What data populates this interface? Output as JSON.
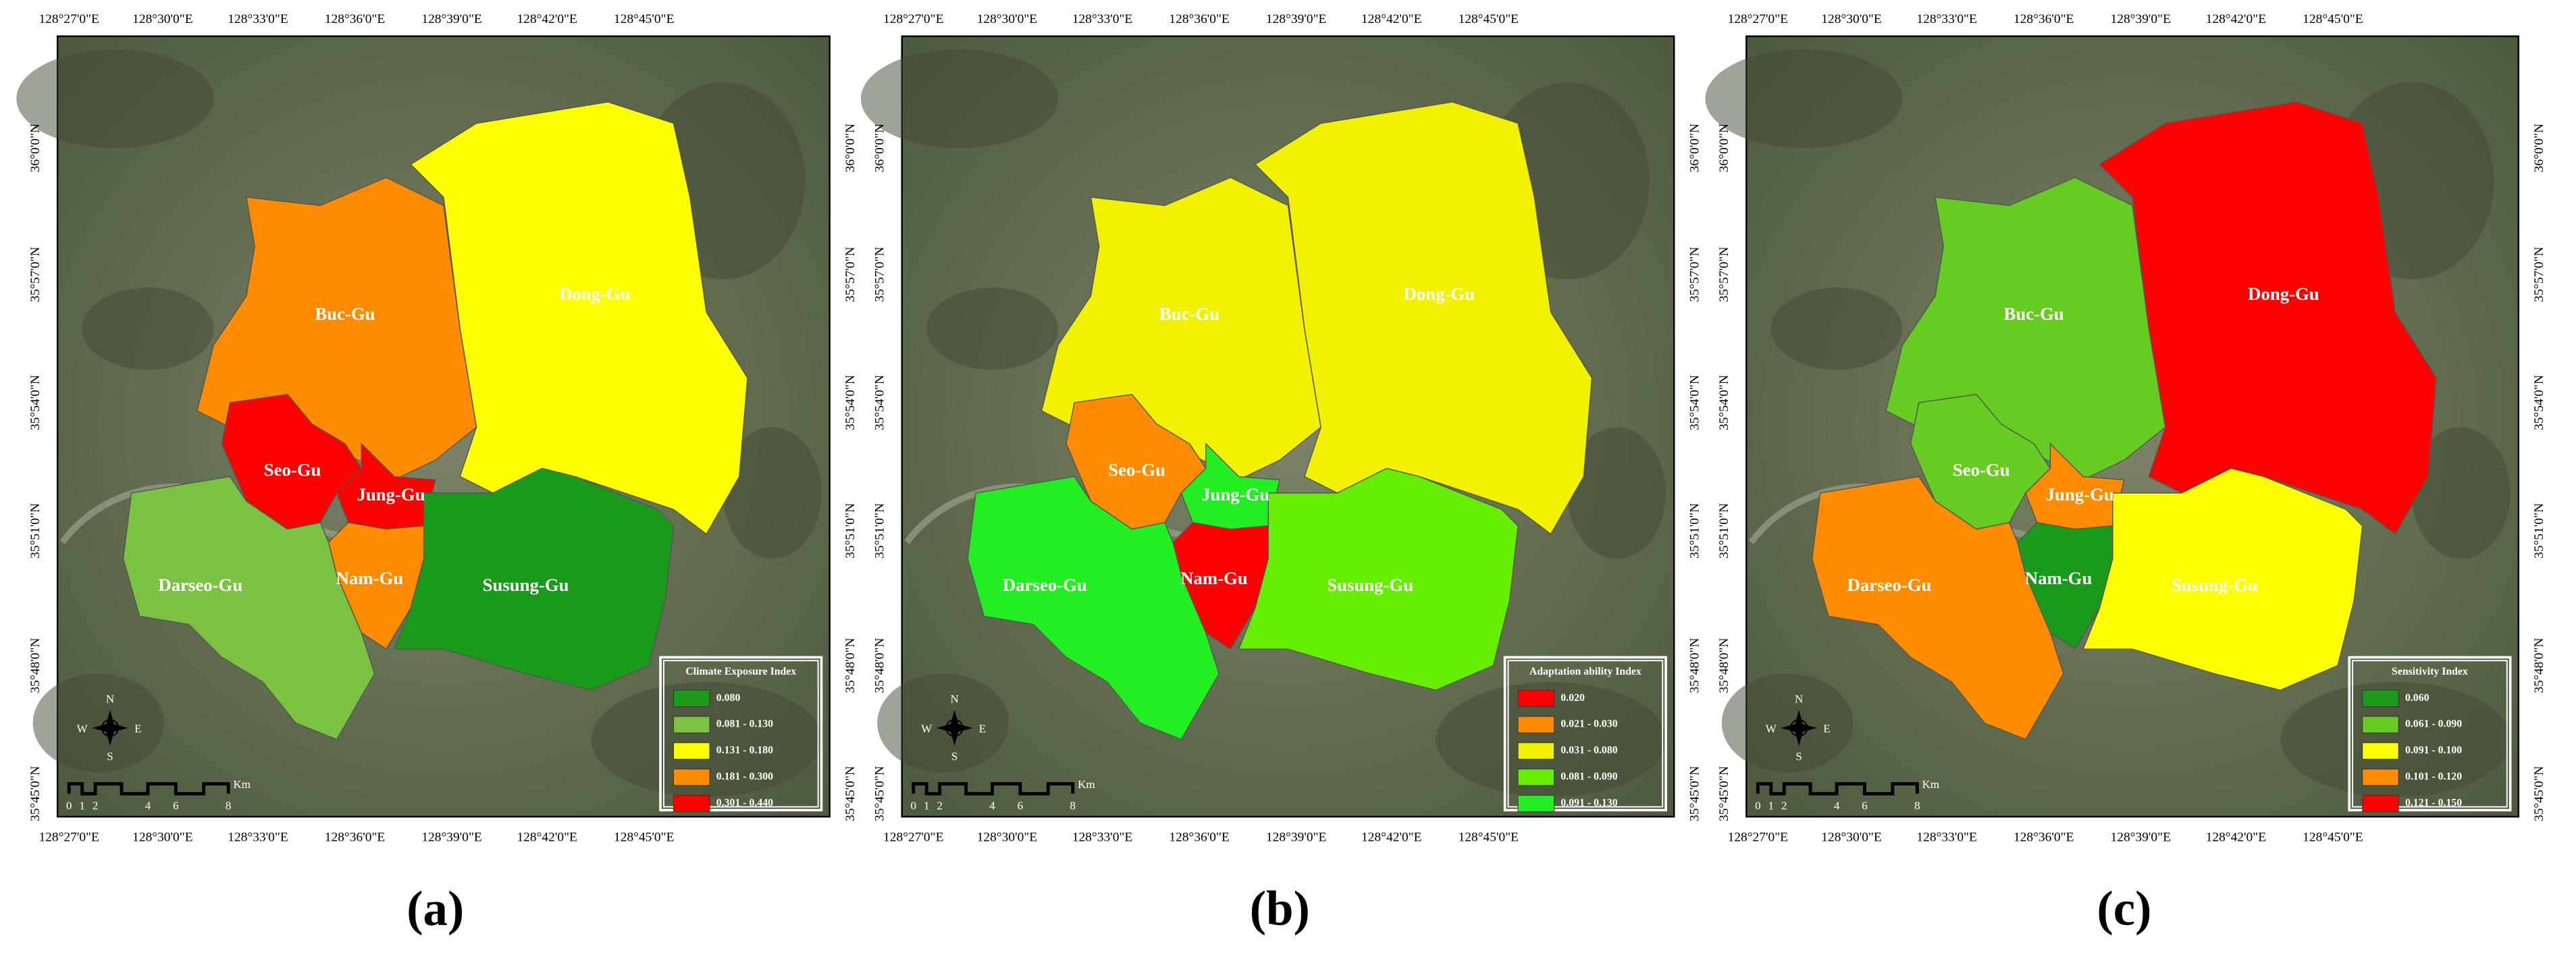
{
  "figure": {
    "longitude_labels": [
      "128°27'0\"E",
      "128°30'0\"E",
      "128°33'0\"E",
      "128°36'0\"E",
      "128°39'0\"E",
      "128°42'0\"E",
      "128°45'0\"E"
    ],
    "latitude_labels": [
      "36°0'0\"N",
      "35°57'0\"N",
      "35°54'0\"N",
      "35°51'0\"N",
      "35°48'0\"N",
      "35°45'0\"N"
    ],
    "scale_bar": {
      "labels": [
        "0",
        "1",
        "2",
        "4",
        "6",
        "8"
      ],
      "unit": "Km"
    },
    "compass": {
      "north": "N",
      "east": "E",
      "south": "S",
      "west": "W"
    },
    "panels": [
      {
        "caption": "(a)",
        "legend": {
          "title": "Climate Exposure Index",
          "items": [
            {
              "label": "0.080",
              "color": "#1a9a1a"
            },
            {
              "label": "0.081 - 0.130",
              "color": "#7cc242"
            },
            {
              "label": "0.131 - 0.180",
              "color": "#ffff00"
            },
            {
              "label": "0.181 - 0.300",
              "color": "#ff8c00"
            },
            {
              "label": "0.301 - 0.440",
              "color": "#ff0000"
            }
          ]
        },
        "districts": [
          {
            "name": "Dong-Gu",
            "color": "#ffff00"
          },
          {
            "name": "Buc-Gu",
            "color": "#ff8c00"
          },
          {
            "name": "Seo-Gu",
            "color": "#ff0000"
          },
          {
            "name": "Jung-Gu",
            "color": "#ff0000"
          },
          {
            "name": "Nam-Gu",
            "color": "#ff8c00"
          },
          {
            "name": "Susung-Gu",
            "color": "#1a9a1a"
          },
          {
            "name": "Darseo-Gu",
            "color": "#7cc242"
          }
        ]
      },
      {
        "caption": "(b)",
        "legend": {
          "title": "Adaptation ability Index",
          "items": [
            {
              "label": "0.020",
              "color": "#ff0000"
            },
            {
              "label": "0.021 - 0.030",
              "color": "#ff8c00"
            },
            {
              "label": "0.031 - 0.080",
              "color": "#f2f200"
            },
            {
              "label": "0.081 - 0.090",
              "color": "#66ee00"
            },
            {
              "label": "0.091 - 0.130",
              "color": "#22ee22"
            }
          ]
        },
        "districts": [
          {
            "name": "Dong-Gu",
            "color": "#f2f200"
          },
          {
            "name": "Buc-Gu",
            "color": "#f2f200"
          },
          {
            "name": "Seo-Gu",
            "color": "#ff8c00"
          },
          {
            "name": "Jung-Gu",
            "color": "#22ee22"
          },
          {
            "name": "Nam-Gu",
            "color": "#ff0000"
          },
          {
            "name": "Susung-Gu",
            "color": "#66ee00"
          },
          {
            "name": "Darseo-Gu",
            "color": "#22ee22"
          }
        ]
      },
      {
        "caption": "(c)",
        "legend": {
          "title": "Sensitivity Index",
          "items": [
            {
              "label": "0.060",
              "color": "#1a9a1a"
            },
            {
              "label": "0.061 - 0.090",
              "color": "#66cc22"
            },
            {
              "label": "0.091 - 0.100",
              "color": "#ffff00"
            },
            {
              "label": "0.101 - 0.120",
              "color": "#ff8c00"
            },
            {
              "label": "0.121 - 0.150",
              "color": "#ff0000"
            }
          ]
        },
        "districts": [
          {
            "name": "Dong-Gu",
            "color": "#ff0000"
          },
          {
            "name": "Buc-Gu",
            "color": "#66cc22"
          },
          {
            "name": "Seo-Gu",
            "color": "#66cc22"
          },
          {
            "name": "Jung-Gu",
            "color": "#ff8c00"
          },
          {
            "name": "Nam-Gu",
            "color": "#1a9a1a"
          },
          {
            "name": "Susung-Gu",
            "color": "#ffff00"
          },
          {
            "name": "Darseo-Gu",
            "color": "#ff8c00"
          }
        ]
      }
    ]
  }
}
